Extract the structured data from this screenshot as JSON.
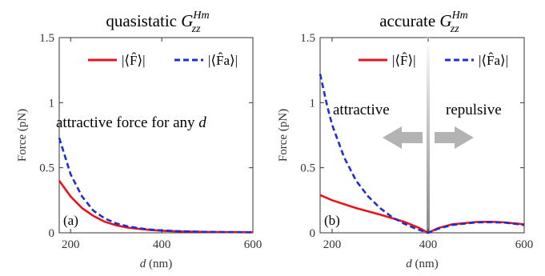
{
  "colors": {
    "solid": "#e8141b",
    "dashed": "#1f2ecf",
    "arrow": "#b3b3b3",
    "axis": "#333333"
  },
  "legend": {
    "solid_label": "|⟨F̂⟩|",
    "dashed_label": "|⟨F̂a⟩|"
  },
  "chart_data": [
    {
      "type": "line",
      "panel_label": "(a)",
      "title_text": "quasistatic",
      "title_symbol": "G",
      "title_sup": "Hm",
      "title_sub": "zz",
      "xlabel_italic": "d",
      "xlabel_unit": "(nm)",
      "ylabel": "Force (pN)",
      "xlim": [
        175,
        600
      ],
      "ylim": [
        0,
        1.5
      ],
      "xticks": [
        200,
        400,
        600
      ],
      "yticks": [
        0,
        0.5,
        1,
        1.5
      ],
      "ytick_labels": [
        "0",
        "0.5",
        "1",
        "1.5"
      ],
      "annotation": {
        "text": "attractive force for any",
        "italic": "d"
      },
      "series": [
        {
          "style": "solid",
          "x": [
            175,
            200,
            225,
            250,
            275,
            300,
            325,
            350,
            375,
            400,
            450,
            500,
            550,
            600
          ],
          "y": [
            0.4,
            0.28,
            0.19,
            0.13,
            0.085,
            0.058,
            0.04,
            0.03,
            0.022,
            0.016,
            0.01,
            0.007,
            0.005,
            0.004
          ]
        },
        {
          "style": "dashed",
          "x": [
            175,
            200,
            225,
            250,
            275,
            300,
            325,
            350,
            375,
            400,
            450,
            500,
            550,
            600
          ],
          "y": [
            0.73,
            0.45,
            0.28,
            0.17,
            0.11,
            0.072,
            0.05,
            0.035,
            0.025,
            0.018,
            0.011,
            0.007,
            0.005,
            0.004
          ]
        }
      ]
    },
    {
      "type": "line",
      "panel_label": "(b)",
      "title_text": "accurate",
      "title_symbol": "G",
      "title_sup": "Hm",
      "title_sub": "zz",
      "xlabel_italic": "d",
      "xlabel_unit": "(nm)",
      "ylabel": "Force (pN)",
      "xlim": [
        175,
        600
      ],
      "ylim": [
        0,
        1.5
      ],
      "xticks": [
        200,
        400,
        600
      ],
      "yticks": [
        0,
        0.5,
        1,
        1.5
      ],
      "ytick_labels": [
        "0",
        "0.5",
        "1",
        "1.5"
      ],
      "divider_x": 400,
      "region_labels": {
        "left": "attractive",
        "right": "repulsive"
      },
      "series": [
        {
          "style": "solid",
          "x": [
            175,
            200,
            250,
            300,
            350,
            380,
            400,
            420,
            450,
            500,
            530,
            560,
            600
          ],
          "y": [
            0.29,
            0.25,
            0.19,
            0.14,
            0.085,
            0.04,
            0.0,
            0.035,
            0.065,
            0.083,
            0.085,
            0.08,
            0.065
          ]
        },
        {
          "style": "dashed",
          "x": [
            175,
            190,
            200,
            225,
            250,
            275,
            300,
            325,
            350,
            375,
            400,
            420,
            450,
            500,
            530,
            560,
            600
          ],
          "y": [
            1.22,
            0.97,
            0.83,
            0.58,
            0.4,
            0.28,
            0.19,
            0.12,
            0.07,
            0.03,
            0.0,
            0.03,
            0.06,
            0.08,
            0.082,
            0.078,
            0.06
          ]
        }
      ]
    }
  ]
}
